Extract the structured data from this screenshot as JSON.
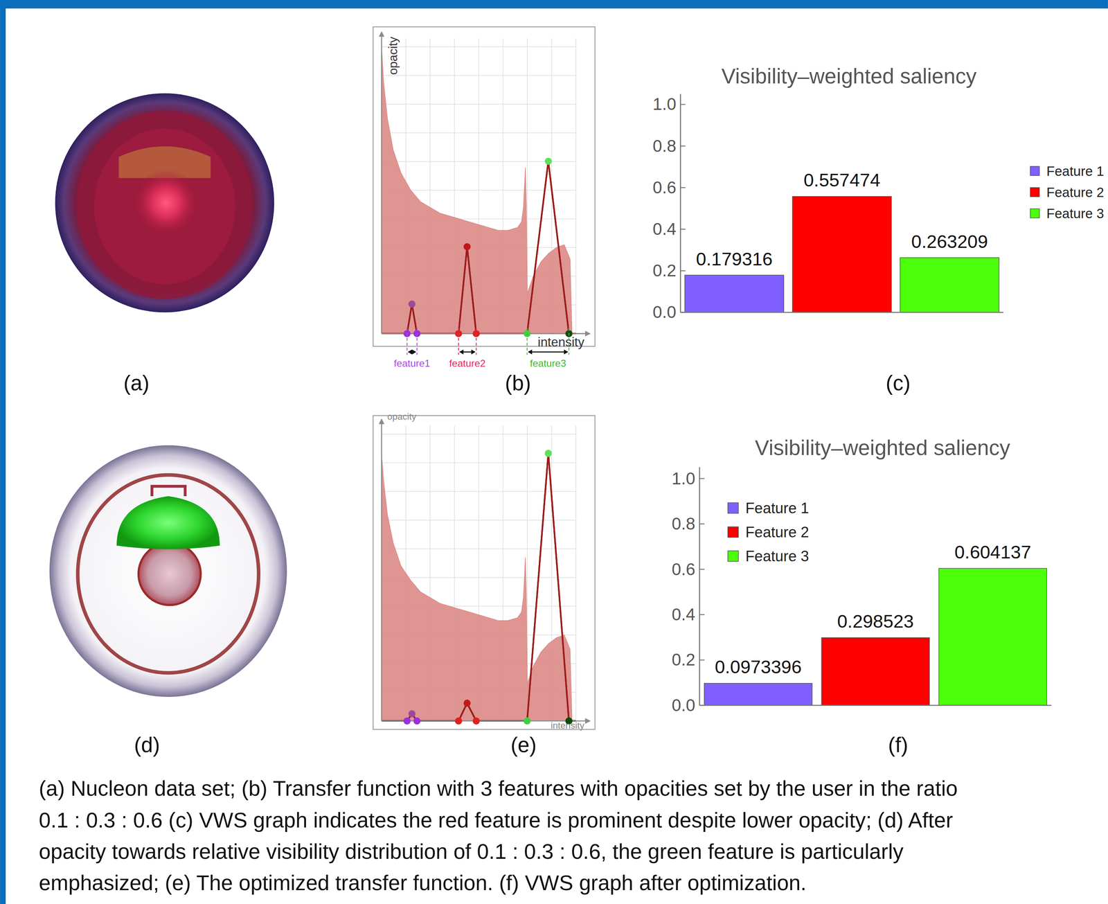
{
  "panels": [
    {
      "label": "(a)"
    },
    {
      "label": "(b)"
    },
    {
      "label": "(c)"
    },
    {
      "label": "(d)"
    },
    {
      "label": "(e)"
    },
    {
      "label": "(f)"
    }
  ],
  "caption": [
    "(a) Nucleon data set;  (b) Transfer function with 3 features with opacities set by the user in the ratio",
    "0.1 : 0.3 : 0.6  (c) VWS graph indicates the red feature is prominent despite lower opacity; (d) After",
    "opacity towards relative visibility distribution of 0.1 : 0.3 : 0.6, the green feature is particularly",
    "emphasized; (e) The optimized transfer function. (f) VWS graph after optimization."
  ],
  "chart_data": [
    {
      "type": "transfer_function",
      "x_label": "intensity",
      "y_label": "opacity",
      "xlim": [
        0,
        1
      ],
      "ylim": [
        0,
        1.03
      ],
      "xticks": [
        0.125,
        0.25,
        0.375,
        0.5,
        0.625,
        0.75,
        0.875,
        1
      ],
      "yticks": [
        0.1,
        0.2,
        0.3,
        0.4,
        0.5,
        0.6,
        0.7,
        0.8,
        0.9,
        1.0
      ],
      "grid": true,
      "tick_labels": false,
      "series": [
        {
          "type": "area",
          "color": "#dc8a86",
          "x": [
            0,
            0.01,
            0.03,
            0.06,
            0.1,
            0.15,
            0.2,
            0.25,
            0.3,
            0.35,
            0.4,
            0.45,
            0.5,
            0.55,
            0.6,
            0.65,
            0.7,
            0.72,
            0.73,
            0.74,
            0.745,
            0.75,
            0.78,
            0.82,
            0.86,
            0.9,
            0.94,
            0.97,
            0.98
          ],
          "values": [
            1.0,
            0.88,
            0.75,
            0.64,
            0.56,
            0.5,
            0.46,
            0.44,
            0.42,
            0.41,
            0.4,
            0.39,
            0.38,
            0.37,
            0.36,
            0.36,
            0.37,
            0.39,
            0.44,
            0.58,
            0.45,
            0.14,
            0.2,
            0.25,
            0.28,
            0.3,
            0.31,
            0.26,
            0.0
          ]
        },
        {
          "type": "line",
          "color": "#9b1c1c",
          "marker": "circle",
          "colors": [
            null,
            "#9b30d9",
            "#9b4a9b",
            "#9b30d9",
            "#e02020",
            "#c01818",
            "#e02020",
            "#3ed13e",
            "#5ee05e",
            "#0b4d0b",
            null
          ],
          "x": [
            0,
            0.131,
            0.156,
            0.182,
            0.396,
            0.44,
            0.487,
            0.749,
            0.858,
            0.964,
            1
          ],
          "values": [
            0,
            0,
            0.103,
            0,
            0,
            0.303,
            0,
            0,
            0.601,
            0,
            0
          ]
        }
      ],
      "annotations": [
        {
          "text": "feature1",
          "color": "#a64ce0",
          "x": [
            0.131,
            0.182
          ]
        },
        {
          "text": "feature2",
          "color": "#e0305a",
          "x": [
            0.396,
            0.487
          ]
        },
        {
          "text": "feature3",
          "color": "#3cb83c",
          "x": [
            0.749,
            0.964
          ]
        }
      ]
    },
    {
      "type": "bar",
      "title": "Visibility–weighted saliency",
      "categories": [
        "Feature 1",
        "Feature 2",
        "Feature 3"
      ],
      "values": [
        0.179316,
        0.557474,
        0.263209
      ],
      "colors": [
        "#7f5fff",
        "#ff0000",
        "#4cff0a"
      ],
      "ylim": [
        0,
        1.05
      ],
      "yticks": [
        {
          "value": 0,
          "label": "0.0"
        },
        0.2,
        0.4,
        0.6,
        0.8,
        {
          "value": 1,
          "label": "1.0"
        }
      ],
      "data_labels": true,
      "tick_labels": "y",
      "legend": "right"
    },
    {
      "type": "transfer_function",
      "x_label": "intensity",
      "y_label": "opacity",
      "xlim": [
        0,
        1
      ],
      "ylim": [
        0,
        1.03
      ],
      "xticks": [
        0.125,
        0.25,
        0.375,
        0.5,
        0.625,
        0.75,
        0.875,
        1
      ],
      "yticks": [
        0.1,
        0.2,
        0.3,
        0.4,
        0.5,
        0.6,
        0.7,
        0.8,
        0.9,
        1.0
      ],
      "grid": true,
      "tick_labels": false,
      "series": [
        {
          "type": "area",
          "color": "#dc8a86",
          "x": [
            0,
            0.01,
            0.03,
            0.06,
            0.1,
            0.15,
            0.2,
            0.25,
            0.3,
            0.35,
            0.4,
            0.45,
            0.5,
            0.55,
            0.6,
            0.65,
            0.7,
            0.72,
            0.73,
            0.74,
            0.745,
            0.75,
            0.78,
            0.82,
            0.86,
            0.9,
            0.94,
            0.97,
            0.98
          ],
          "values": [
            0.93,
            0.84,
            0.72,
            0.62,
            0.54,
            0.49,
            0.45,
            0.43,
            0.41,
            0.4,
            0.39,
            0.38,
            0.37,
            0.36,
            0.35,
            0.35,
            0.36,
            0.38,
            0.43,
            0.57,
            0.44,
            0.13,
            0.19,
            0.24,
            0.27,
            0.29,
            0.3,
            0.25,
            0.0
          ]
        },
        {
          "type": "line",
          "color": "#9b1c1c",
          "marker": "circle",
          "colors": [
            null,
            "#9b30d9",
            "#9b4a9b",
            "#9b30d9",
            "#e02020",
            "#c01818",
            "#e02020",
            "#3ed13e",
            "#5ee05e",
            "#0b4d0b",
            null
          ],
          "x": [
            0,
            0.131,
            0.156,
            0.182,
            0.396,
            0.44,
            0.487,
            0.749,
            0.858,
            0.964,
            1
          ],
          "values": [
            0,
            0,
            0.025,
            0,
            0,
            0.062,
            0,
            0,
            0.933,
            0,
            0
          ]
        }
      ]
    },
    {
      "type": "bar",
      "title": "Visibility–weighted saliency",
      "categories": [
        "Feature 1",
        "Feature 2",
        "Feature 3"
      ],
      "values": [
        0.0973396,
        0.298523,
        0.604137
      ],
      "colors": [
        "#7f5fff",
        "#ff0000",
        "#4cff0a"
      ],
      "ylim": [
        0,
        1.05
      ],
      "yticks": [
        {
          "value": 0,
          "label": "0.0"
        },
        0.2,
        0.4,
        0.6,
        0.8,
        {
          "value": 1,
          "label": "1.0"
        }
      ],
      "data_labels": true,
      "tick_labels": "y",
      "legend": "top-left"
    }
  ]
}
